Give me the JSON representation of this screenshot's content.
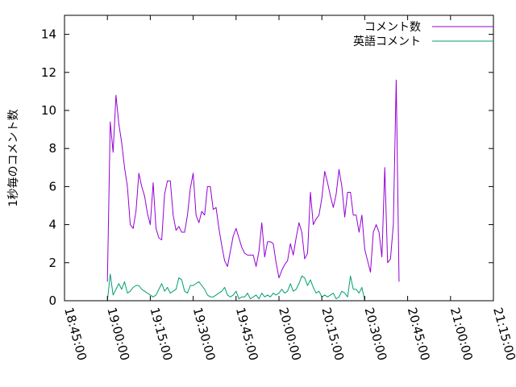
{
  "chart_data": {
    "type": "line",
    "title": "",
    "xlabel": "",
    "ylabel": "1秒毎のコメント数",
    "ylim": [
      0,
      15
    ],
    "yticks": [
      0,
      2,
      4,
      6,
      8,
      10,
      12,
      14
    ],
    "xlim": [
      "18:45:00",
      "21:15:00"
    ],
    "xticks": [
      "18:45:00",
      "19:00:00",
      "19:15:00",
      "19:30:00",
      "19:45:00",
      "20:00:00",
      "20:15:00",
      "20:30:00",
      "20:45:00",
      "21:00:00",
      "21:15:00"
    ],
    "grid": false,
    "legend_position": "top-right",
    "colors": {
      "コメント数": "#9400d3",
      "英語コメント": "#009e73"
    },
    "series": [
      {
        "name": "コメント数",
        "color": "#9400d3",
        "points": [
          [
            "19:00:00",
            1.0
          ],
          [
            "19:01:00",
            9.4
          ],
          [
            "19:02:00",
            7.8
          ],
          [
            "19:03:00",
            10.8
          ],
          [
            "19:04:00",
            9.3
          ],
          [
            "19:05:00",
            8.3
          ],
          [
            "19:06:00",
            7.0
          ],
          [
            "19:07:00",
            6.0
          ],
          [
            "19:08:00",
            4.0
          ],
          [
            "19:09:00",
            3.8
          ],
          [
            "19:10:00",
            4.7
          ],
          [
            "19:11:00",
            6.7
          ],
          [
            "19:12:00",
            6.0
          ],
          [
            "19:13:00",
            5.5
          ],
          [
            "19:14:00",
            4.6
          ],
          [
            "19:15:00",
            4.0
          ],
          [
            "19:16:00",
            6.2
          ],
          [
            "19:17:00",
            3.8
          ],
          [
            "19:18:00",
            3.3
          ],
          [
            "19:19:00",
            3.2
          ],
          [
            "19:20:00",
            5.6
          ],
          [
            "19:21:00",
            6.3
          ],
          [
            "19:22:00",
            6.3
          ],
          [
            "19:23:00",
            4.5
          ],
          [
            "19:24:00",
            3.7
          ],
          [
            "19:25:00",
            3.9
          ],
          [
            "19:26:00",
            3.6
          ],
          [
            "19:27:00",
            3.6
          ],
          [
            "19:28:00",
            4.5
          ],
          [
            "19:29:00",
            5.9
          ],
          [
            "19:30:00",
            6.7
          ],
          [
            "19:31:00",
            4.5
          ],
          [
            "19:32:00",
            4.1
          ],
          [
            "19:33:00",
            4.7
          ],
          [
            "19:34:00",
            4.5
          ],
          [
            "19:35:00",
            6.0
          ],
          [
            "19:36:00",
            6.0
          ],
          [
            "19:37:00",
            4.8
          ],
          [
            "19:38:00",
            4.9
          ],
          [
            "19:39:00",
            3.8
          ],
          [
            "19:40:00",
            2.9
          ],
          [
            "19:41:00",
            2.1
          ],
          [
            "19:42:00",
            1.8
          ],
          [
            "19:43:00",
            2.6
          ],
          [
            "19:44:00",
            3.4
          ],
          [
            "19:45:00",
            3.8
          ],
          [
            "19:46:00",
            3.3
          ],
          [
            "19:47:00",
            2.8
          ],
          [
            "19:48:00",
            2.5
          ],
          [
            "19:49:00",
            2.4
          ],
          [
            "19:50:00",
            2.4
          ],
          [
            "19:51:00",
            2.4
          ],
          [
            "19:52:00",
            1.8
          ],
          [
            "19:53:00",
            2.6
          ],
          [
            "19:54:00",
            4.1
          ],
          [
            "19:55:00",
            2.3
          ],
          [
            "19:56:00",
            3.1
          ],
          [
            "19:57:00",
            3.1
          ],
          [
            "19:58:00",
            3.0
          ],
          [
            "19:59:00",
            2.0
          ],
          [
            "20:00:00",
            1.2
          ],
          [
            "20:01:00",
            1.6
          ],
          [
            "20:02:00",
            1.9
          ],
          [
            "20:03:00",
            2.1
          ],
          [
            "20:04:00",
            3.0
          ],
          [
            "20:05:00",
            2.4
          ],
          [
            "20:06:00",
            3.3
          ],
          [
            "20:07:00",
            4.1
          ],
          [
            "20:08:00",
            3.6
          ],
          [
            "20:09:00",
            2.2
          ],
          [
            "20:10:00",
            2.5
          ],
          [
            "20:11:00",
            5.7
          ],
          [
            "20:12:00",
            4.0
          ],
          [
            "20:13:00",
            4.3
          ],
          [
            "20:14:00",
            4.5
          ],
          [
            "20:15:00",
            5.4
          ],
          [
            "20:16:00",
            6.8
          ],
          [
            "20:17:00",
            6.2
          ],
          [
            "20:18:00",
            5.5
          ],
          [
            "20:19:00",
            4.9
          ],
          [
            "20:20:00",
            5.6
          ],
          [
            "20:21:00",
            6.9
          ],
          [
            "20:22:00",
            6.0
          ],
          [
            "20:23:00",
            4.4
          ],
          [
            "20:24:00",
            5.7
          ],
          [
            "20:25:00",
            5.7
          ],
          [
            "20:26:00",
            4.5
          ],
          [
            "20:27:00",
            4.5
          ],
          [
            "20:28:00",
            3.6
          ],
          [
            "20:29:00",
            4.5
          ],
          [
            "20:30:00",
            2.7
          ],
          [
            "20:31:00",
            2.1
          ],
          [
            "20:32:00",
            1.5
          ],
          [
            "20:33:00",
            3.6
          ],
          [
            "20:34:00",
            4.0
          ],
          [
            "20:35:00",
            3.6
          ],
          [
            "20:36:00",
            2.3
          ],
          [
            "20:37:00",
            7.0
          ],
          [
            "20:38:00",
            2.0
          ],
          [
            "20:39:00",
            2.2
          ],
          [
            "20:40:00",
            4.0
          ],
          [
            "20:41:00",
            11.6
          ],
          [
            "20:42:00",
            1.0
          ]
        ]
      },
      {
        "name": "英語コメント",
        "color": "#009e73",
        "points": [
          [
            "19:00:00",
            0.0
          ],
          [
            "19:01:00",
            1.4
          ],
          [
            "19:02:00",
            0.3
          ],
          [
            "19:03:00",
            0.6
          ],
          [
            "19:04:00",
            0.9
          ],
          [
            "19:05:00",
            0.6
          ],
          [
            "19:06:00",
            1.0
          ],
          [
            "19:07:00",
            0.4
          ],
          [
            "19:08:00",
            0.5
          ],
          [
            "19:09:00",
            0.7
          ],
          [
            "19:10:00",
            0.8
          ],
          [
            "19:11:00",
            0.8
          ],
          [
            "19:12:00",
            0.6
          ],
          [
            "19:13:00",
            0.5
          ],
          [
            "19:14:00",
            0.4
          ],
          [
            "19:15:00",
            0.3
          ],
          [
            "19:16:00",
            0.2
          ],
          [
            "19:17:00",
            0.3
          ],
          [
            "19:18:00",
            0.6
          ],
          [
            "19:19:00",
            0.9
          ],
          [
            "19:20:00",
            0.5
          ],
          [
            "19:21:00",
            0.7
          ],
          [
            "19:22:00",
            0.4
          ],
          [
            "19:23:00",
            0.5
          ],
          [
            "19:24:00",
            0.6
          ],
          [
            "19:25:00",
            1.2
          ],
          [
            "19:26:00",
            1.1
          ],
          [
            "19:27:00",
            0.5
          ],
          [
            "19:28:00",
            0.4
          ],
          [
            "19:29:00",
            0.8
          ],
          [
            "19:30:00",
            0.8
          ],
          [
            "19:31:00",
            0.9
          ],
          [
            "19:32:00",
            1.0
          ],
          [
            "19:33:00",
            0.8
          ],
          [
            "19:34:00",
            0.6
          ],
          [
            "19:35:00",
            0.3
          ],
          [
            "19:36:00",
            0.2
          ],
          [
            "19:37:00",
            0.2
          ],
          [
            "19:38:00",
            0.3
          ],
          [
            "19:39:00",
            0.4
          ],
          [
            "19:40:00",
            0.5
          ],
          [
            "19:41:00",
            0.7
          ],
          [
            "19:42:00",
            0.3
          ],
          [
            "19:43:00",
            0.2
          ],
          [
            "19:44:00",
            0.3
          ],
          [
            "19:45:00",
            0.5
          ],
          [
            "19:46:00",
            0.1
          ],
          [
            "19:47:00",
            0.2
          ],
          [
            "19:48:00",
            0.2
          ],
          [
            "19:49:00",
            0.4
          ],
          [
            "19:50:00",
            0.1
          ],
          [
            "19:51:00",
            0.2
          ],
          [
            "19:52:00",
            0.3
          ],
          [
            "19:53:00",
            0.1
          ],
          [
            "19:54:00",
            0.4
          ],
          [
            "19:55:00",
            0.2
          ],
          [
            "19:56:00",
            0.3
          ],
          [
            "19:57:00",
            0.2
          ],
          [
            "19:58:00",
            0.4
          ],
          [
            "19:59:00",
            0.3
          ],
          [
            "20:00:00",
            0.4
          ],
          [
            "20:01:00",
            0.6
          ],
          [
            "20:02:00",
            0.4
          ],
          [
            "20:03:00",
            0.5
          ],
          [
            "20:04:00",
            0.9
          ],
          [
            "20:05:00",
            0.5
          ],
          [
            "20:06:00",
            0.6
          ],
          [
            "20:07:00",
            0.9
          ],
          [
            "20:08:00",
            1.3
          ],
          [
            "20:09:00",
            1.2
          ],
          [
            "20:10:00",
            0.8
          ],
          [
            "20:11:00",
            1.1
          ],
          [
            "20:12:00",
            0.7
          ],
          [
            "20:13:00",
            0.4
          ],
          [
            "20:14:00",
            0.5
          ],
          [
            "20:15:00",
            0.2
          ],
          [
            "20:16:00",
            0.3
          ],
          [
            "20:17:00",
            0.2
          ],
          [
            "20:18:00",
            0.3
          ],
          [
            "20:19:00",
            0.4
          ],
          [
            "20:20:00",
            0.1
          ],
          [
            "20:21:00",
            0.2
          ],
          [
            "20:22:00",
            0.5
          ],
          [
            "20:23:00",
            0.4
          ],
          [
            "20:24:00",
            0.2
          ],
          [
            "20:25:00",
            1.3
          ],
          [
            "20:26:00",
            0.6
          ],
          [
            "20:27:00",
            0.6
          ],
          [
            "20:28:00",
            0.4
          ],
          [
            "20:29:00",
            0.7
          ],
          [
            "20:30:00",
            0.0
          ]
        ]
      }
    ]
  }
}
